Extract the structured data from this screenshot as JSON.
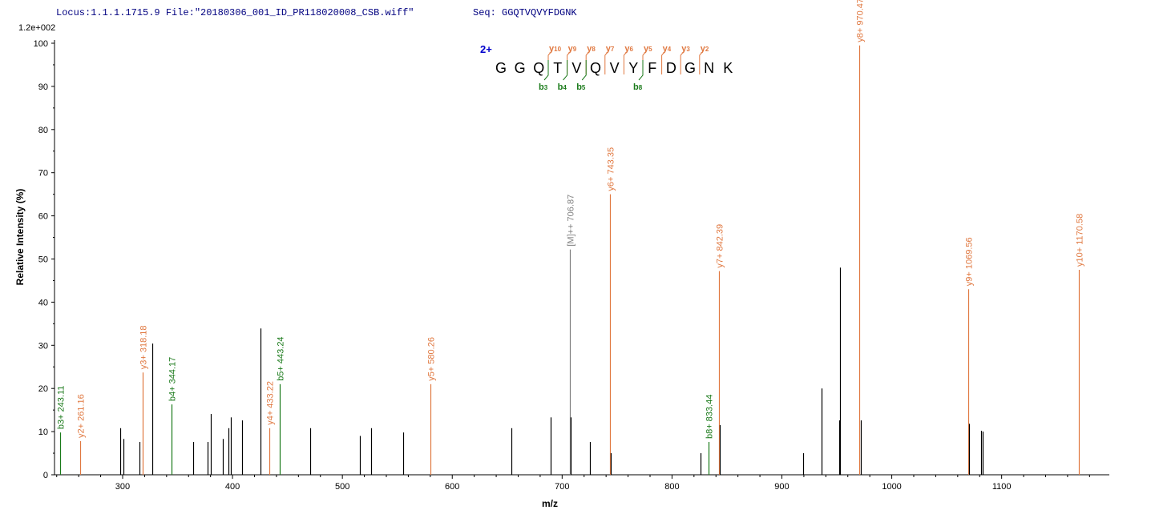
{
  "header": {
    "locus": "Locus:1.1.1.1715.9 File:\"20180306_001_ID_PR118020008_CSB.wiff\"",
    "seq": "Seq: GGQTVQVYFDGNK"
  },
  "colors": {
    "y_ion": "#e07840",
    "b_ion": "#1a7a1a",
    "precursor": "#808080",
    "other": "#000000",
    "charge": "#0000cc",
    "header_text": "#000080"
  },
  "chart_data": {
    "type": "bar",
    "title": "",
    "xlabel": "m/z",
    "ylabel": "Relative   Intensity (%)",
    "y_scale_label": "1.2e+002",
    "xlim": [
      238,
      1198
    ],
    "ylim": [
      0,
      100
    ],
    "x_ticks": [
      300,
      400,
      500,
      600,
      700,
      800,
      900,
      1000,
      1100
    ],
    "y_ticks": [
      0,
      10,
      20,
      30,
      40,
      50,
      60,
      70,
      80,
      90,
      100
    ],
    "peaks": [
      {
        "mz": 243.11,
        "intensity": 9.8,
        "type": "b",
        "label": "b3+ 243.11"
      },
      {
        "mz": 261.16,
        "intensity": 7.8,
        "type": "y",
        "label": "y2+ 261.16"
      },
      {
        "mz": 297.5,
        "intensity": 10.8,
        "type": "other"
      },
      {
        "mz": 300.5,
        "intensity": 8.3,
        "type": "other"
      },
      {
        "mz": 315.3,
        "intensity": 7.6,
        "type": "other"
      },
      {
        "mz": 318.18,
        "intensity": 23.7,
        "type": "y",
        "label": "y3+ 318.18"
      },
      {
        "mz": 327.0,
        "intensity": 30.4,
        "type": "other"
      },
      {
        "mz": 344.17,
        "intensity": 16.3,
        "type": "b",
        "label": "b4+ 344.17"
      },
      {
        "mz": 364.0,
        "intensity": 7.6,
        "type": "other"
      },
      {
        "mz": 377.0,
        "intensity": 7.6,
        "type": "other"
      },
      {
        "mz": 380.3,
        "intensity": 14.1,
        "type": "other"
      },
      {
        "mz": 391.0,
        "intensity": 8.3,
        "type": "other"
      },
      {
        "mz": 396.0,
        "intensity": 10.8,
        "type": "other"
      },
      {
        "mz": 398.5,
        "intensity": 13.3,
        "type": "other"
      },
      {
        "mz": 408.5,
        "intensity": 12.6,
        "type": "other"
      },
      {
        "mz": 425.5,
        "intensity": 33.9,
        "type": "other"
      },
      {
        "mz": 433.22,
        "intensity": 10.8,
        "type": "y",
        "label": "y4+ 433.22"
      },
      {
        "mz": 443.24,
        "intensity": 21.0,
        "type": "b",
        "label": "b5+ 443.24"
      },
      {
        "mz": 471.0,
        "intensity": 10.8,
        "type": "other"
      },
      {
        "mz": 516.0,
        "intensity": 9.0,
        "type": "other"
      },
      {
        "mz": 526.0,
        "intensity": 10.8,
        "type": "other"
      },
      {
        "mz": 555.0,
        "intensity": 9.8,
        "type": "other"
      },
      {
        "mz": 580.26,
        "intensity": 21.0,
        "type": "y",
        "label": "y5+ 580.26"
      },
      {
        "mz": 653.5,
        "intensity": 10.8,
        "type": "other"
      },
      {
        "mz": 689.5,
        "intensity": 13.3,
        "type": "other"
      },
      {
        "mz": 706.87,
        "intensity": 52.2,
        "type": "precursor",
        "label": "[M]++ 706.87"
      },
      {
        "mz": 707.8,
        "intensity": 13.3,
        "type": "other"
      },
      {
        "mz": 725.5,
        "intensity": 7.6,
        "type": "other"
      },
      {
        "mz": 743.35,
        "intensity": 65.0,
        "type": "y",
        "label": "y6+ 743.35"
      },
      {
        "mz": 744.5,
        "intensity": 5.0,
        "type": "other"
      },
      {
        "mz": 826.0,
        "intensity": 5.0,
        "type": "other"
      },
      {
        "mz": 833.44,
        "intensity": 7.6,
        "type": "b",
        "label": "b8+ 833.44"
      },
      {
        "mz": 842.39,
        "intensity": 47.2,
        "type": "y",
        "label": "y7+ 842.39"
      },
      {
        "mz": 843.4,
        "intensity": 11.5,
        "type": "other"
      },
      {
        "mz": 919.0,
        "intensity": 5.0,
        "type": "other"
      },
      {
        "mz": 936.0,
        "intensity": 20.0,
        "type": "other"
      },
      {
        "mz": 952.0,
        "intensity": 12.6,
        "type": "other"
      },
      {
        "mz": 953.0,
        "intensity": 48.0,
        "type": "other"
      },
      {
        "mz": 970.47,
        "intensity": 99.5,
        "type": "y",
        "label": "y8+ 970.47"
      },
      {
        "mz": 971.5,
        "intensity": 12.6,
        "type": "other"
      },
      {
        "mz": 1069.56,
        "intensity": 43.0,
        "type": "y",
        "label": "y9+ 1069.56"
      },
      {
        "mz": 1070.5,
        "intensity": 11.8,
        "type": "other"
      },
      {
        "mz": 1081.0,
        "intensity": 10.2,
        "type": "other"
      },
      {
        "mz": 1082.5,
        "intensity": 10.0,
        "type": "other"
      },
      {
        "mz": 1170.58,
        "intensity": 47.5,
        "type": "y",
        "label": "y10+ 1170.58"
      }
    ]
  },
  "sequence_diagram": {
    "charge": "2+",
    "residues": [
      "G",
      "G",
      "Q",
      "T",
      "V",
      "Q",
      "V",
      "Y",
      "F",
      "D",
      "G",
      "N",
      "K"
    ],
    "y_ions": [
      {
        "ion": "y",
        "num": "10",
        "after": 3
      },
      {
        "ion": "y",
        "num": "9",
        "after": 4
      },
      {
        "ion": "y",
        "num": "8",
        "after": 5
      },
      {
        "ion": "y",
        "num": "7",
        "after": 6
      },
      {
        "ion": "y",
        "num": "6",
        "after": 7
      },
      {
        "ion": "y",
        "num": "5",
        "after": 8
      },
      {
        "ion": "y",
        "num": "4",
        "after": 9
      },
      {
        "ion": "y",
        "num": "3",
        "after": 10
      },
      {
        "ion": "y",
        "num": "2",
        "after": 11
      }
    ],
    "b_ions": [
      {
        "ion": "b",
        "num": "3",
        "after": 3
      },
      {
        "ion": "b",
        "num": "4",
        "after": 4
      },
      {
        "ion": "b",
        "num": "5",
        "after": 5
      },
      {
        "ion": "b",
        "num": "8",
        "after": 8
      }
    ]
  }
}
